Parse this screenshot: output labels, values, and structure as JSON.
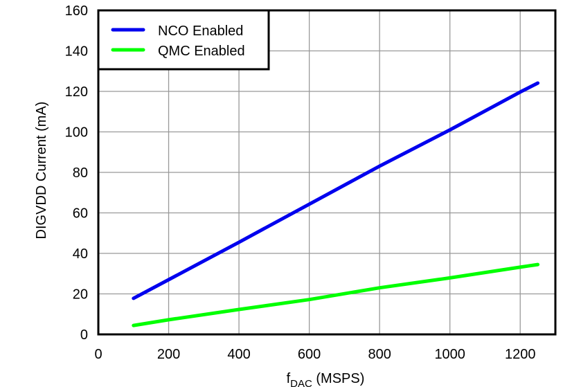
{
  "chart_data": {
    "type": "line",
    "title": "",
    "xlabel": "fDAC (MSPS)",
    "xlabel_main": "f",
    "xlabel_sub": "DAC",
    "xlabel_units": " (MSPS)",
    "ylabel": "DIGVDD Current (mA)",
    "xlim": [
      0,
      1300
    ],
    "ylim": [
      0,
      160
    ],
    "xticks": [
      0,
      200,
      400,
      600,
      800,
      1000,
      1200
    ],
    "yticks": [
      0,
      20,
      40,
      60,
      80,
      100,
      120,
      140,
      160
    ],
    "grid": true,
    "legend_position": "upper left",
    "x": [
      100,
      200,
      400,
      600,
      800,
      1000,
      1200,
      1250
    ],
    "series": [
      {
        "name": "NCO Enabled",
        "color": "#0000EE",
        "values": [
          17.8,
          27.0,
          45.5,
          64.3,
          83.1,
          101.0,
          119.7,
          124.1
        ]
      },
      {
        "name": "QMC Enabled",
        "color": "#00FF00",
        "values": [
          4.4,
          7.2,
          12.3,
          17.2,
          23.0,
          27.9,
          33.2,
          34.5
        ]
      }
    ]
  },
  "legend": {
    "items": [
      {
        "label": "NCO Enabled",
        "color": "#0000EE"
      },
      {
        "label": "QMC Enabled",
        "color": "#00FF00"
      }
    ]
  }
}
